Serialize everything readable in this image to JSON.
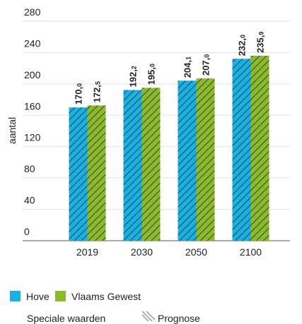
{
  "chart_data": {
    "type": "bar",
    "y_label": "aantal",
    "categories": [
      "2019",
      "2030",
      "2050",
      "2100"
    ],
    "series": [
      {
        "name": "Hove",
        "color": "#1ab0e0",
        "values": [
          170.0,
          192.2,
          204.1,
          232.0
        ],
        "value_labels": [
          "170,0",
          "192,2",
          "204,1",
          "232,0"
        ]
      },
      {
        "name": "Vlaams Gewest",
        "color": "#8cba2a",
        "values": [
          172.5,
          195.0,
          207.0,
          235.9
        ],
        "value_labels": [
          "172,5",
          "195,0",
          "207,0",
          "235,9"
        ]
      }
    ],
    "ylim": [
      0,
      280
    ],
    "yticks": [
      0,
      40,
      80,
      120,
      160,
      200,
      240,
      280
    ],
    "grid": true,
    "legend_title": "Speciale waarden",
    "hatch_label": "Prognose"
  }
}
